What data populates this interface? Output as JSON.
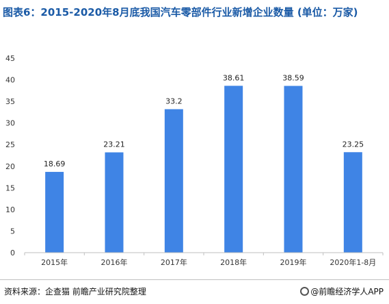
{
  "chart_data": {
    "type": "bar",
    "title": "图表6：2015-2020年8月底我国汽车零部件行业新增企业数量 (单位：万家)",
    "categories": [
      "2015年",
      "2016年",
      "2017年",
      "2018年",
      "2019年",
      "2020年1-8月"
    ],
    "values": [
      18.69,
      23.21,
      33.2,
      38.61,
      38.59,
      23.25
    ],
    "value_labels": [
      "18.69",
      "23.21",
      "33.2",
      "38.61",
      "38.59",
      "23.25"
    ],
    "ylim": [
      0,
      45
    ],
    "yticks": [
      0,
      5,
      10,
      15,
      20,
      25,
      30,
      35,
      40,
      45
    ],
    "bar_color": "#3f84e5",
    "grid": false,
    "legend": "none"
  },
  "footer": {
    "source": "资料来源：企查猫 前瞻产业研究院整理",
    "brand": "@前瞻经济学人APP"
  }
}
